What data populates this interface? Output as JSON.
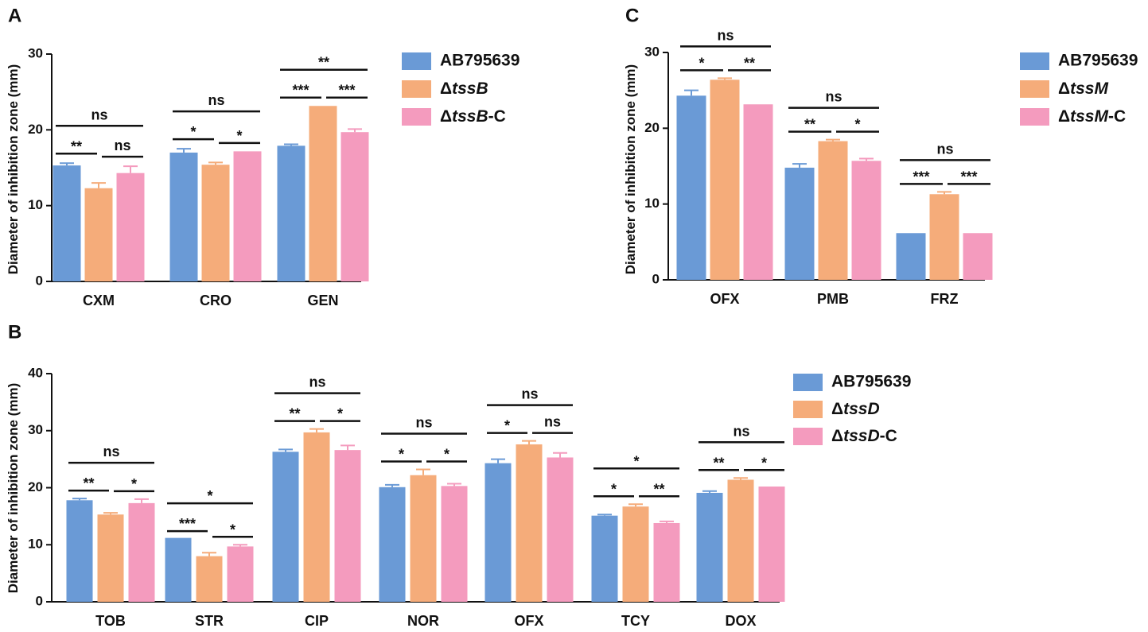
{
  "chart_data": [
    {
      "id": "A",
      "type": "bar",
      "panel_label": "A",
      "ylabel": "Diameter of inhibition zone (mm)",
      "ylim": [
        0,
        30
      ],
      "yticks": [
        "0",
        "10",
        "20",
        "30"
      ],
      "categories": [
        "CXM",
        "CRO",
        "GEN"
      ],
      "series": [
        {
          "name": "AB795639",
          "color": "#6a9ad6",
          "values": [
            15.3,
            17.0,
            17.9
          ],
          "errors": [
            0.3,
            0.5,
            0.2
          ]
        },
        {
          "name": "ΔtssB",
          "legend_prefix": "Δ",
          "legend_italic": "tssB",
          "legend_suffix": "",
          "color": "#f5ac7a",
          "values": [
            12.3,
            15.4,
            23.0
          ],
          "errors": [
            0.7,
            0.3,
            0.0
          ]
        },
        {
          "name": "ΔtssB-C",
          "legend_prefix": "Δ",
          "legend_italic": "tssB",
          "legend_suffix": "-C",
          "color": "#f49bbe",
          "values": [
            14.3,
            17.0,
            19.7
          ],
          "errors": [
            0.9,
            0.0,
            0.4
          ]
        }
      ],
      "significance": [
        {
          "category": 0,
          "from": 0,
          "to": 1,
          "label": "**"
        },
        {
          "category": 0,
          "from": 1,
          "to": 2,
          "label": "ns"
        },
        {
          "category": 0,
          "from": 0,
          "to": 2,
          "label": "ns"
        },
        {
          "category": 1,
          "from": 0,
          "to": 1,
          "label": "*"
        },
        {
          "category": 1,
          "from": 1,
          "to": 2,
          "label": "*"
        },
        {
          "category": 1,
          "from": 0,
          "to": 2,
          "label": "ns"
        },
        {
          "category": 2,
          "from": 0,
          "to": 1,
          "label": "***"
        },
        {
          "category": 2,
          "from": 1,
          "to": 2,
          "label": "***"
        },
        {
          "category": 2,
          "from": 0,
          "to": 2,
          "label": "**"
        }
      ]
    },
    {
      "id": "B",
      "type": "bar",
      "panel_label": "B",
      "ylabel": "Diameter of inhibition zone (mm)",
      "ylim": [
        0,
        40
      ],
      "yticks": [
        "0",
        "10",
        "20",
        "30",
        "40"
      ],
      "categories": [
        "TOB",
        "STR",
        "CIP",
        "NOR",
        "OFX",
        "TCY",
        "DOX"
      ],
      "series": [
        {
          "name": "AB795639",
          "color": "#6a9ad6",
          "values": [
            17.8,
            11.0,
            26.3,
            20.1,
            24.3,
            15.1,
            19.1
          ],
          "errors": [
            0.3,
            0.0,
            0.4,
            0.4,
            0.7,
            0.2,
            0.3
          ]
        },
        {
          "name": "ΔtssD",
          "legend_prefix": "Δ",
          "legend_italic": "tssD",
          "legend_suffix": "",
          "color": "#f5ac7a",
          "values": [
            15.3,
            8.0,
            29.7,
            22.2,
            27.6,
            16.7,
            21.4
          ],
          "errors": [
            0.3,
            0.6,
            0.6,
            1.0,
            0.6,
            0.4,
            0.3
          ]
        },
        {
          "name": "ΔtssD-C",
          "legend_prefix": "Δ",
          "legend_italic": "tssD",
          "legend_suffix": "-C",
          "color": "#f49bbe",
          "values": [
            17.3,
            9.7,
            26.6,
            20.3,
            25.3,
            13.8,
            20.0
          ],
          "errors": [
            0.7,
            0.3,
            0.8,
            0.4,
            0.8,
            0.3,
            0.0
          ]
        }
      ],
      "significance": [
        {
          "category": 0,
          "from": 0,
          "to": 1,
          "label": "**"
        },
        {
          "category": 0,
          "from": 1,
          "to": 2,
          "label": "*"
        },
        {
          "category": 0,
          "from": 0,
          "to": 2,
          "label": "ns"
        },
        {
          "category": 1,
          "from": 0,
          "to": 1,
          "label": "***"
        },
        {
          "category": 1,
          "from": 1,
          "to": 2,
          "label": "*"
        },
        {
          "category": 1,
          "from": 0,
          "to": 2,
          "label": "*"
        },
        {
          "category": 2,
          "from": 0,
          "to": 1,
          "label": "**"
        },
        {
          "category": 2,
          "from": 1,
          "to": 2,
          "label": "*"
        },
        {
          "category": 2,
          "from": 0,
          "to": 2,
          "label": "ns"
        },
        {
          "category": 3,
          "from": 0,
          "to": 1,
          "label": "*"
        },
        {
          "category": 3,
          "from": 1,
          "to": 2,
          "label": "*"
        },
        {
          "category": 3,
          "from": 0,
          "to": 2,
          "label": "ns"
        },
        {
          "category": 4,
          "from": 0,
          "to": 1,
          "label": "*"
        },
        {
          "category": 4,
          "from": 1,
          "to": 2,
          "label": "ns"
        },
        {
          "category": 4,
          "from": 0,
          "to": 2,
          "label": "ns"
        },
        {
          "category": 5,
          "from": 0,
          "to": 1,
          "label": "*"
        },
        {
          "category": 5,
          "from": 1,
          "to": 2,
          "label": "**"
        },
        {
          "category": 5,
          "from": 0,
          "to": 2,
          "label": "*"
        },
        {
          "category": 6,
          "from": 0,
          "to": 1,
          "label": "**"
        },
        {
          "category": 6,
          "from": 1,
          "to": 2,
          "label": "*"
        },
        {
          "category": 6,
          "from": 0,
          "to": 2,
          "label": "ns"
        }
      ]
    },
    {
      "id": "C",
      "type": "bar",
      "panel_label": "C",
      "ylabel": "Diameter of inhibition zone (mm)",
      "ylim": [
        0,
        30
      ],
      "yticks": [
        "0",
        "10",
        "20",
        "30"
      ],
      "categories": [
        "OFX",
        "PMB",
        "FRZ"
      ],
      "series": [
        {
          "name": "AB795639",
          "color": "#6a9ad6",
          "values": [
            24.3,
            14.8,
            6.0
          ],
          "errors": [
            0.7,
            0.5,
            0.0
          ]
        },
        {
          "name": "ΔtssM",
          "legend_prefix": "Δ",
          "legend_italic": "tssM",
          "legend_suffix": "",
          "color": "#f5ac7a",
          "values": [
            26.4,
            18.3,
            11.3
          ],
          "errors": [
            0.2,
            0.2,
            0.3
          ]
        },
        {
          "name": "ΔtssM-C",
          "legend_prefix": "Δ",
          "legend_italic": "tssM",
          "legend_suffix": "-C",
          "color": "#f49bbe",
          "values": [
            23.0,
            15.7,
            6.0
          ],
          "errors": [
            0.0,
            0.3,
            0.0
          ]
        }
      ],
      "significance": [
        {
          "category": 0,
          "from": 0,
          "to": 1,
          "label": "*"
        },
        {
          "category": 0,
          "from": 1,
          "to": 2,
          "label": "**"
        },
        {
          "category": 0,
          "from": 0,
          "to": 2,
          "label": "ns"
        },
        {
          "category": 1,
          "from": 0,
          "to": 1,
          "label": "**"
        },
        {
          "category": 1,
          "from": 1,
          "to": 2,
          "label": "*"
        },
        {
          "category": 1,
          "from": 0,
          "to": 2,
          "label": "ns"
        },
        {
          "category": 2,
          "from": 0,
          "to": 1,
          "label": "***"
        },
        {
          "category": 2,
          "from": 1,
          "to": 2,
          "label": "***"
        },
        {
          "category": 2,
          "from": 0,
          "to": 2,
          "label": "ns"
        }
      ]
    }
  ]
}
